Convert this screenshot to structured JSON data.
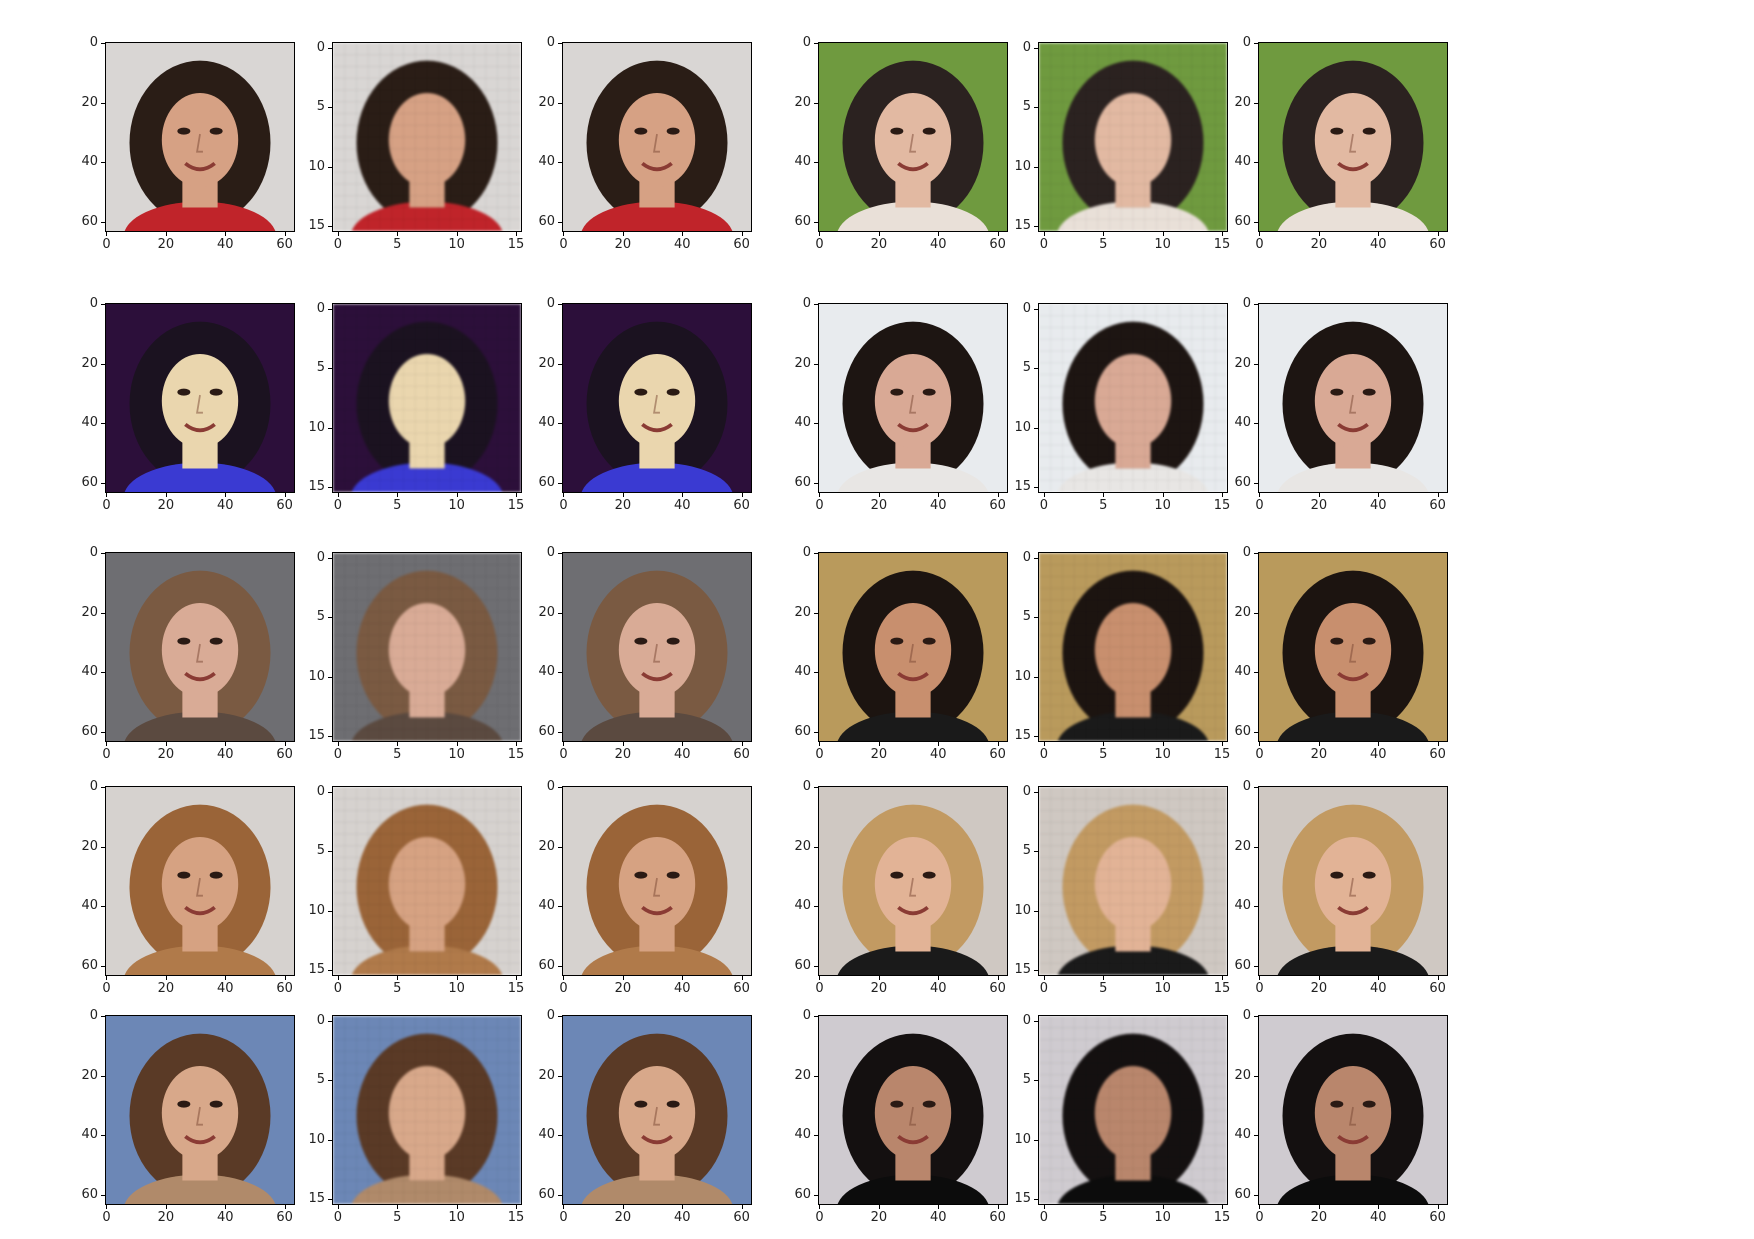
{
  "figure": {
    "columns": 2,
    "rows": 5,
    "panels_per_group": 3,
    "panel_roles": [
      "generated-64",
      "input-16",
      "target-64"
    ]
  },
  "axes": {
    "size64": {
      "ticks": [
        "0",
        "20",
        "40",
        "60"
      ],
      "values": [
        0,
        20,
        40,
        60
      ],
      "max": 64
    },
    "size16": {
      "ticks": [
        "0",
        "5",
        "10",
        "15"
      ],
      "values": [
        0,
        5,
        10,
        15
      ],
      "max": 16
    }
  },
  "groups": [
    {
      "row": 1,
      "col": 1,
      "bg": "#d9d6d4",
      "hair": "#2a1d16",
      "skin": "#d6a184",
      "shirt": "#c0242a"
    },
    {
      "row": 1,
      "col": 2,
      "bg": "#6f9a3f",
      "hair": "#2b2220",
      "skin": "#e2b9a2",
      "shirt": "#e9e0d8"
    },
    {
      "row": 2,
      "col": 1,
      "bg": "#2c0f3a",
      "hair": "#1b1220",
      "skin": "#ead6ae",
      "shirt": "#3a3ad2"
    },
    {
      "row": 2,
      "col": 2,
      "bg": "#e8ebee",
      "hair": "#1d1512",
      "skin": "#d9a995",
      "shirt": "#e8e6e4"
    },
    {
      "row": 3,
      "col": 1,
      "bg": "#6e6e72",
      "hair": "#7a5a42",
      "skin": "#d9ab96",
      "shirt": "#5b4a40"
    },
    {
      "row": 3,
      "col": 2,
      "bg": "#b99a5c",
      "hair": "#1c1410",
      "skin": "#c88f6e",
      "shirt": "#1a1a1a"
    },
    {
      "row": 4,
      "col": 1,
      "bg": "#d6d2cf",
      "hair": "#9a6438",
      "skin": "#d6a282",
      "shirt": "#b07a4a"
    },
    {
      "row": 4,
      "col": 2,
      "bg": "#cfc8c2",
      "hair": "#c29a62",
      "skin": "#e2b396",
      "shirt": "#1a1a1a"
    },
    {
      "row": 5,
      "col": 1,
      "bg": "#6c87b6",
      "hair": "#5a3a26",
      "skin": "#d8a88a",
      "shirt": "#b08a6a"
    },
    {
      "row": 5,
      "col": 2,
      "bg": "#cfcbd0",
      "hair": "#141010",
      "skin": "#b9866c",
      "shirt": "#0c0c0c"
    }
  ]
}
